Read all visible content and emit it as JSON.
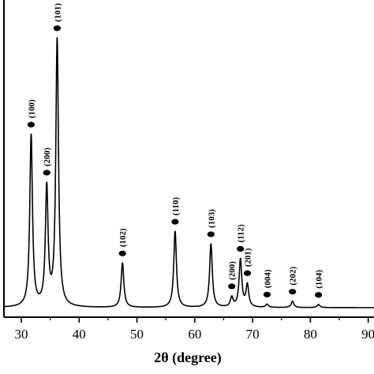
{
  "chart_data": {
    "type": "line",
    "title": "",
    "xlabel": "2θ (degree)",
    "ylabel": "",
    "xlim": [
      27,
      91
    ],
    "ylim": [
      0,
      100
    ],
    "grid": false,
    "legend": "none",
    "line_color": "#000000",
    "x_ticks": [
      {
        "value": 30,
        "label": "30"
      },
      {
        "value": 40,
        "label": "40"
      },
      {
        "value": 50,
        "label": "50"
      },
      {
        "value": 60,
        "label": "60"
      },
      {
        "value": 70,
        "label": "70"
      },
      {
        "value": 80,
        "label": "80"
      },
      {
        "value": 90,
        "label": "90"
      }
    ],
    "baseline": 3,
    "peaks": [
      {
        "x": 31.7,
        "y": 57,
        "label": "(100)"
      },
      {
        "x": 34.4,
        "y": 40,
        "label": "(200)"
      },
      {
        "x": 36.2,
        "y": 87,
        "label": "(101)"
      },
      {
        "x": 47.5,
        "y": 17,
        "label": "(102)"
      },
      {
        "x": 56.6,
        "y": 27,
        "label": "(110)"
      },
      {
        "x": 62.8,
        "y": 23,
        "label": "(103)"
      },
      {
        "x": 66.4,
        "y": 6,
        "label": "(200)"
      },
      {
        "x": 67.9,
        "y": 18,
        "label": "(112)"
      },
      {
        "x": 69.1,
        "y": 10,
        "label": "(201)"
      },
      {
        "x": 72.5,
        "y": 4,
        "label": "(004)"
      },
      {
        "x": 76.9,
        "y": 5,
        "label": "(202)"
      },
      {
        "x": 81.4,
        "y": 4,
        "label": "(104)"
      }
    ]
  }
}
